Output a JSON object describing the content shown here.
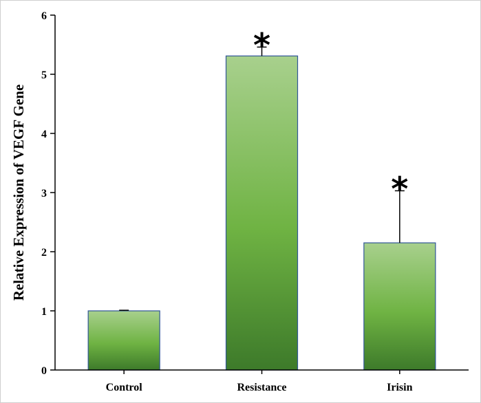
{
  "chart_data": {
    "type": "bar",
    "categories": [
      "Control",
      "Resistance",
      "Irisin"
    ],
    "values": [
      1.0,
      5.31,
      2.15
    ],
    "errors": [
      0.01,
      0.15,
      0.88
    ],
    "significance": [
      "",
      "*",
      "*"
    ],
    "title": "",
    "xlabel": "",
    "ylabel": "Relative Expression of  VEGF Gene",
    "ylim": [
      0,
      6
    ],
    "yticks": [
      "0",
      "1",
      "2",
      "3",
      "4",
      "5",
      "6"
    ],
    "grid": false,
    "legend": "none",
    "bar_colors": {
      "top": "#a8d08d",
      "middle": "#6fb343",
      "bottom": "#3d7a2a",
      "edge": "#2f5597"
    }
  }
}
